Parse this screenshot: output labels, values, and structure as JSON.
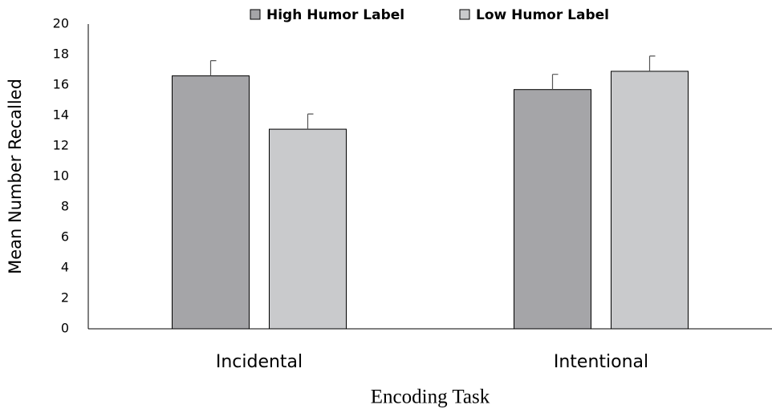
{
  "chart_data": {
    "type": "bar",
    "x_label": "Encoding Task",
    "y_label": "Mean Number Recalled",
    "categories": [
      "Incidental",
      "Intentional"
    ],
    "series": [
      {
        "name": "High Humor Label",
        "color": "#a5a5a8",
        "values": [
          16.6,
          15.7
        ],
        "errors": [
          1.0,
          1.0
        ]
      },
      {
        "name": "Low Humor Label",
        "color": "#c9cacc",
        "values": [
          13.1,
          16.9
        ],
        "errors": [
          1.0,
          1.0
        ]
      }
    ],
    "ylim": [
      0,
      20
    ],
    "yticks": [
      0,
      2,
      4,
      6,
      8,
      10,
      12,
      14,
      16,
      18,
      20
    ],
    "grid": false,
    "legend": "top"
  }
}
